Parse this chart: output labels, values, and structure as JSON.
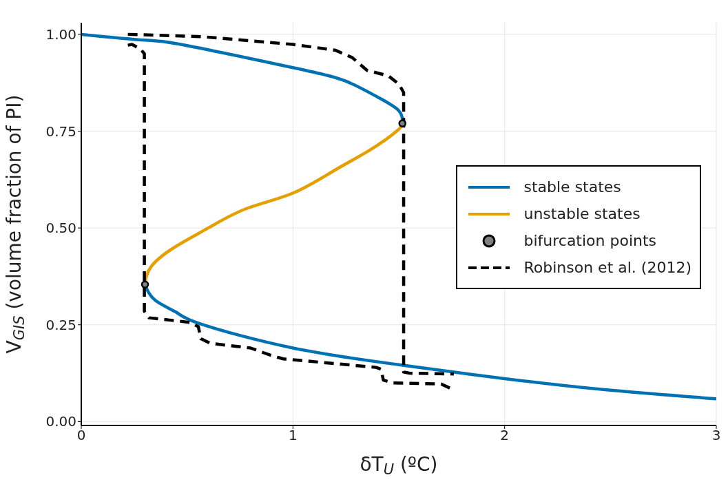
{
  "chart_data": {
    "type": "line",
    "xlabel": "δT$_{U}$ (ºC)",
    "ylabel": "V$_{GIS}$ (volume fraction of PI)",
    "xlim": [
      0,
      3
    ],
    "ylim": [
      -0.01,
      1.03
    ],
    "xticks": [
      0,
      1,
      2,
      3
    ],
    "yticks": [
      {
        "value": 0,
        "label": "0.00"
      },
      {
        "value": 0.25,
        "label": "0.25"
      },
      {
        "value": 0.5,
        "label": "0.50"
      },
      {
        "value": 0.75,
        "label": "0.75"
      },
      {
        "value": 1,
        "label": "1.00"
      }
    ],
    "grid": true,
    "legend": "right",
    "series": [
      {
        "name": "stable states",
        "color": "#0072b2",
        "line_style": "solid",
        "marker": "none",
        "x": [
          0,
          0.3,
          0.5,
          1,
          1.25,
          1.4,
          1.5,
          1.517
        ],
        "values": [
          1,
          0.985,
          0.971,
          0.914,
          0.879,
          0.838,
          0.803,
          0.77
        ]
      },
      {
        "color": "#0072b2",
        "line_style": "solid",
        "marker": "none",
        "x": [
          0.301,
          0.35,
          0.45,
          0.565,
          1,
          1.5,
          2,
          2.5,
          3
        ],
        "values": [
          0.354,
          0.313,
          0.282,
          0.252,
          0.19,
          0.147,
          0.111,
          0.081,
          0.059
        ]
      },
      {
        "name": "unstable states",
        "color": "#e69f00",
        "line_style": "solid",
        "marker": "none",
        "x": [
          0.301,
          0.33,
          0.44,
          0.6,
          0.78,
          1,
          1.2,
          1.36,
          1.49,
          1.517
        ],
        "values": [
          0.354,
          0.4,
          0.45,
          0.5,
          0.55,
          0.59,
          0.65,
          0.7,
          0.75,
          0.77
        ]
      },
      {
        "name": "bifurcation points",
        "type": "scatter",
        "color": "#808080",
        "marker": "circle",
        "x": [
          0.301,
          1.517
        ],
        "values": [
          0.354,
          0.77
        ]
      },
      {
        "name": "Robinson et al. (2012)",
        "color": "#000000",
        "line_style": "dashed",
        "marker": "none",
        "x": [
          0.22,
          0.57,
          1,
          1.2,
          1.28,
          1.35,
          1.45,
          1.5,
          1.523,
          1.523,
          1.55,
          1.76
        ],
        "values": [
          1,
          0.994,
          0.974,
          0.959,
          0.94,
          0.907,
          0.893,
          0.872,
          0.85,
          0.128,
          0.125,
          0.123
        ]
      },
      {
        "color": "#000000",
        "line_style": "dashed",
        "marker": "none",
        "x": [
          0.22,
          0.24,
          0.28,
          0.298,
          0.298,
          0.32,
          0.517,
          0.553,
          0.565,
          0.61,
          0.8,
          0.896,
          0.954,
          1.393,
          1.417,
          1.427,
          1.475,
          1.7,
          1.748
        ],
        "values": [
          0.972,
          0.974,
          0.962,
          0.95,
          0.285,
          0.268,
          0.256,
          0.245,
          0.214,
          0.202,
          0.19,
          0.171,
          0.162,
          0.14,
          0.135,
          0.107,
          0.1,
          0.097,
          0.085
        ]
      }
    ]
  }
}
